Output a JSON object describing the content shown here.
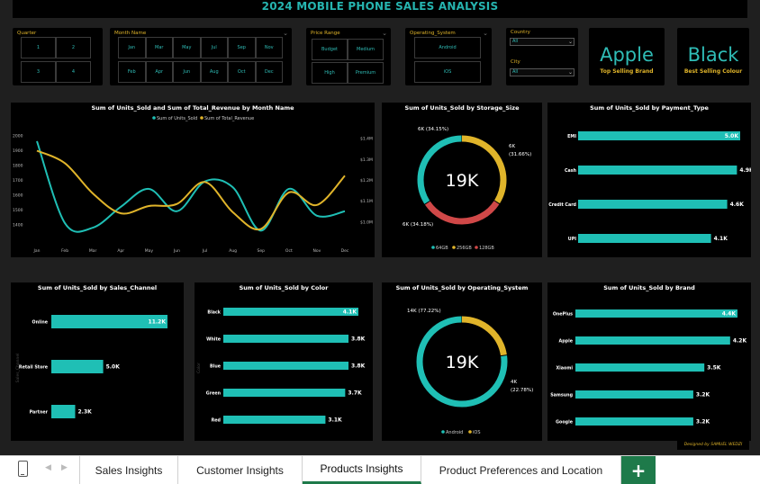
{
  "header": {
    "title": "2024 MOBILE PHONE SALES ANALYSIS"
  },
  "slicers": {
    "quarter": {
      "title": "Quarter",
      "items": [
        "1",
        "2",
        "3",
        "4"
      ]
    },
    "month": {
      "title": "Month Name",
      "items": [
        "Jan",
        "Mar",
        "May",
        "Jul",
        "Sep",
        "Nov",
        "Feb",
        "Apr",
        "Jun",
        "Aug",
        "Oct",
        "Dec"
      ]
    },
    "price_range": {
      "title": "Price Range",
      "items": [
        "Budget",
        "Medium",
        "High",
        "Premium"
      ]
    },
    "os": {
      "title": "Operating_System",
      "items": [
        "Android",
        "iOS"
      ]
    },
    "country": {
      "label": "Country",
      "value": "All"
    },
    "city": {
      "label": "City",
      "value": "All"
    }
  },
  "cards": [
    {
      "value": "Apple",
      "label": "Top Selling Brand"
    },
    {
      "value": "Black",
      "label": "Best Selling Colour"
    }
  ],
  "colors": {
    "teal": "#1fbfb5",
    "gold": "#e0b42a",
    "red": "#d04848"
  },
  "monthly_chart": {
    "title": "Sum of Units_Sold and Sum of Total_Revenue by Month Name",
    "legend": [
      "Sum of Units_Sold",
      "Sum of Total_Revenue"
    ],
    "y_left_ticks": [
      "2000",
      "1900",
      "1800",
      "1700",
      "1600",
      "1500",
      "1400"
    ],
    "y_right_ticks": [
      "$1.4M",
      "$1.3M",
      "$1.2M",
      "$1.1M",
      "$1.0M"
    ],
    "chart_data": {
      "type": "line",
      "categories": [
        "Jan",
        "Feb",
        "Mar",
        "Apr",
        "May",
        "Jun",
        "Jul",
        "Aug",
        "Sep",
        "Oct",
        "Nov",
        "Dec"
      ],
      "series": [
        {
          "name": "Sum of Units_Sold",
          "axis": "left",
          "values": [
            1960,
            1410,
            1380,
            1520,
            1640,
            1490,
            1690,
            1650,
            1360,
            1640,
            1460,
            1490
          ]
        },
        {
          "name": "Sum of Total_Revenue",
          "axis": "right",
          "values": [
            1340000,
            1280000,
            1135000,
            1040000,
            1075000,
            1085000,
            1190000,
            1045000,
            965000,
            1140000,
            1080000,
            1220000
          ]
        }
      ],
      "ylim_left": [
        1350,
        2050
      ],
      "ylim_right": [
        950000,
        1450000
      ]
    }
  },
  "storage_chart": {
    "title": "Sum of Units_Sold by Storage_Size",
    "center": "19K",
    "labels": [
      "6K (34.15%)",
      "6K",
      "(31.66%)",
      "6K (34.18%)"
    ],
    "legend": [
      "64GB",
      "256GB",
      "128GB"
    ],
    "chart_data": {
      "type": "pie",
      "categories": [
        "64GB",
        "256GB",
        "128GB"
      ],
      "values": [
        34.18,
        34.15,
        31.66
      ]
    }
  },
  "payment_chart": {
    "title": "Sum of Units_Sold by Payment_Type",
    "chart_data": {
      "type": "bar",
      "categories": [
        "EMI",
        "Cash",
        "Credit Card",
        "UPI"
      ],
      "values": [
        5.0,
        4.9,
        4.6,
        4.1
      ],
      "value_labels": [
        "5.0K",
        "4.9K",
        "4.6K",
        "4.1K"
      ]
    }
  },
  "channel_chart": {
    "title": "Sum of Units_Sold by Sales_Channel",
    "axis_label": "Sales_Channel",
    "chart_data": {
      "type": "bar",
      "categories": [
        "Online",
        "Retail Store",
        "Partner"
      ],
      "values": [
        11.2,
        5.0,
        2.3
      ],
      "value_labels": [
        "11.2K",
        "5.0K",
        "2.3K"
      ]
    }
  },
  "color_chart": {
    "title": "Sum of Units_Sold by Color",
    "axis_label": "Color",
    "chart_data": {
      "type": "bar",
      "categories": [
        "Black",
        "White",
        "Blue",
        "Green",
        "Red"
      ],
      "values": [
        4.1,
        3.8,
        3.8,
        3.7,
        3.1
      ],
      "value_labels": [
        "4.1K",
        "3.8K",
        "3.8K",
        "3.7K",
        "3.1K"
      ]
    }
  },
  "os_chart": {
    "title": "Sum of Units_Sold by Operating_System",
    "center": "19K",
    "labels": [
      "14K (77.22%)",
      "4K",
      "(22.78%)"
    ],
    "legend": [
      "Android",
      "iOS"
    ],
    "chart_data": {
      "type": "pie",
      "categories": [
        "Android",
        "iOS"
      ],
      "values": [
        77.22,
        22.78
      ]
    }
  },
  "brand_chart": {
    "title": "Sum of Units_Sold by Brand",
    "chart_data": {
      "type": "bar",
      "categories": [
        "OnePlus",
        "Apple",
        "Xiaomi",
        "Samsung",
        "Google"
      ],
      "values": [
        4.4,
        4.2,
        3.5,
        3.2,
        3.2
      ],
      "value_labels": [
        "4.4K",
        "4.2K",
        "3.5K",
        "3.2K",
        "3.2K"
      ]
    }
  },
  "footer": {
    "credit": "Designed by SAMUEL WEDZI"
  },
  "tabs": [
    "Sales Insights",
    "Customer Insights",
    "Products Insights",
    "Product Preferences and Location"
  ],
  "active_tab": "Products Insights",
  "add_sheet": "+"
}
